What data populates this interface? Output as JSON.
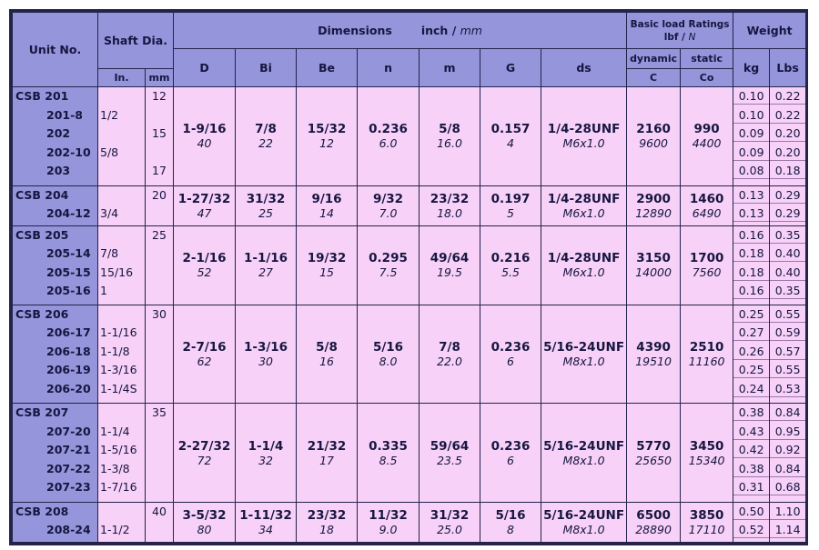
{
  "headers": {
    "unit": "Unit No.",
    "shaft": "Shaft Dia.",
    "shaft_in": "In.",
    "shaft_mm": "mm",
    "dimensions": "Dimensions",
    "dim_units": "inch /",
    "dim_units_mm": "mm",
    "cols": [
      "D",
      "Bi",
      "Be",
      "n",
      "m",
      "G",
      "ds"
    ],
    "load_line1": "Basic load Ratings",
    "load_line2": "lbf /",
    "load_line2_n": "N",
    "dynamic": "dynamic",
    "dynamic_sym": "C",
    "static": "static",
    "static_sym": "Co",
    "weight": "Weight",
    "kg": "kg",
    "lbs": "Lbs"
  },
  "groups": [
    {
      "units": [
        "CSB 201",
        "201-8",
        "202",
        "202-10",
        "203"
      ],
      "shaft_in": [
        "",
        "1/2",
        "",
        "5/8",
        ""
      ],
      "shaft_mm": [
        "12",
        "",
        "15",
        "",
        "17"
      ],
      "D": [
        "1-9/16",
        "40"
      ],
      "Bi": [
        "7/8",
        "22"
      ],
      "Be": [
        "15/32",
        "12"
      ],
      "n": [
        "0.236",
        "6.0"
      ],
      "m": [
        "5/8",
        "16.0"
      ],
      "G": [
        "0.157",
        "4"
      ],
      "ds": [
        "1/4-28UNF",
        "M6x1.0"
      ],
      "dynamic": [
        "2160",
        "9600"
      ],
      "static": [
        "990",
        "4400"
      ],
      "kg": [
        "0.10",
        "0.10",
        "0.09",
        "0.09",
        "0.08"
      ],
      "lbs": [
        "0.22",
        "0.22",
        "0.20",
        "0.20",
        "0.18"
      ]
    },
    {
      "units": [
        "CSB 204",
        "204-12"
      ],
      "shaft_in": [
        "",
        "3/4"
      ],
      "shaft_mm": [
        "20",
        ""
      ],
      "D": [
        "1-27/32",
        "47"
      ],
      "Bi": [
        "31/32",
        "25"
      ],
      "Be": [
        "9/16",
        "14"
      ],
      "n": [
        "9/32",
        "7.0"
      ],
      "m": [
        "23/32",
        "18.0"
      ],
      "G": [
        "0.197",
        "5"
      ],
      "ds": [
        "1/4-28UNF",
        "M6x1.0"
      ],
      "dynamic": [
        "2900",
        "12890"
      ],
      "static": [
        "1460",
        "6490"
      ],
      "kg": [
        "0.13",
        "0.13"
      ],
      "lbs": [
        "0.29",
        "0.29"
      ]
    },
    {
      "units": [
        "CSB 205",
        "205-14",
        "205-15",
        "205-16"
      ],
      "shaft_in": [
        "",
        "7/8",
        "15/16",
        "1"
      ],
      "shaft_mm": [
        "25",
        "",
        "",
        ""
      ],
      "D": [
        "2-1/16",
        "52"
      ],
      "Bi": [
        "1-1/16",
        "27"
      ],
      "Be": [
        "19/32",
        "15"
      ],
      "n": [
        "0.295",
        "7.5"
      ],
      "m": [
        "49/64",
        "19.5"
      ],
      "G": [
        "0.216",
        "5.5"
      ],
      "ds": [
        "1/4-28UNF",
        "M6x1.0"
      ],
      "dynamic": [
        "3150",
        "14000"
      ],
      "static": [
        "1700",
        "7560"
      ],
      "kg": [
        "0.16",
        "0.18",
        "0.18",
        "0.16"
      ],
      "lbs": [
        "0.35",
        "0.40",
        "0.40",
        "0.35"
      ]
    },
    {
      "units": [
        "CSB 206",
        "206-17",
        "206-18",
        "206-19",
        "206-20"
      ],
      "shaft_in": [
        "",
        "1-1/16",
        "1-1/8",
        "1-3/16",
        "1-1/4S"
      ],
      "shaft_mm": [
        "30",
        "",
        "",
        "",
        ""
      ],
      "D": [
        "2-7/16",
        "62"
      ],
      "Bi": [
        "1-3/16",
        "30"
      ],
      "Be": [
        "5/8",
        "16"
      ],
      "n": [
        "5/16",
        "8.0"
      ],
      "m": [
        "7/8",
        "22.0"
      ],
      "G": [
        "0.236",
        "6"
      ],
      "ds": [
        "5/16-24UNF",
        "M8x1.0"
      ],
      "dynamic": [
        "4390",
        "19510"
      ],
      "static": [
        "2510",
        "11160"
      ],
      "kg": [
        "0.25",
        "0.27",
        "0.26",
        "0.25",
        "0.24"
      ],
      "lbs": [
        "0.55",
        "0.59",
        "0.57",
        "0.55",
        "0.53"
      ]
    },
    {
      "units": [
        "CSB 207",
        "207-20",
        "207-21",
        "207-22",
        "207-23"
      ],
      "shaft_in": [
        "",
        "1-1/4",
        "1-5/16",
        "1-3/8",
        "1-7/16"
      ],
      "shaft_mm": [
        "35",
        "",
        "",
        "",
        ""
      ],
      "D": [
        "2-27/32",
        "72"
      ],
      "Bi": [
        "1-1/4",
        "32"
      ],
      "Be": [
        "21/32",
        "17"
      ],
      "n": [
        "0.335",
        "8.5"
      ],
      "m": [
        "59/64",
        "23.5"
      ],
      "G": [
        "0.236",
        "6"
      ],
      "ds": [
        "5/16-24UNF",
        "M8x1.0"
      ],
      "dynamic": [
        "5770",
        "25650"
      ],
      "static": [
        "3450",
        "15340"
      ],
      "kg": [
        "0.38",
        "0.43",
        "0.42",
        "0.38",
        "0.31"
      ],
      "lbs": [
        "0.84",
        "0.95",
        "0.92",
        "0.84",
        "0.68"
      ]
    },
    {
      "units": [
        "CSB 208",
        "208-24"
      ],
      "shaft_in": [
        "",
        "1-1/2"
      ],
      "shaft_mm": [
        "40",
        ""
      ],
      "D": [
        "3-5/32",
        "80"
      ],
      "Bi": [
        "1-11/32",
        "34"
      ],
      "Be": [
        "23/32",
        "18"
      ],
      "n": [
        "11/32",
        "9.0"
      ],
      "m": [
        "31/32",
        "25.0"
      ],
      "G": [
        "5/16",
        "8"
      ],
      "ds": [
        "5/16-24UNF",
        "M8x1.0"
      ],
      "dynamic": [
        "6500",
        "28890"
      ],
      "static": [
        "3850",
        "17110"
      ],
      "kg": [
        "0.50",
        "0.52"
      ],
      "lbs": [
        "1.10",
        "1.14"
      ]
    }
  ]
}
